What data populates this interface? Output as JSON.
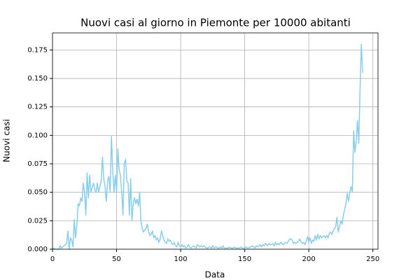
{
  "chart_data": {
    "type": "line",
    "title": "Nuovi casi al giorno in Piemonte per 10000 abitanti",
    "xlabel": "Data",
    "ylabel": "Nuovi casi",
    "color": "#87ceeb",
    "grid": true,
    "xlim": [
      0,
      254
    ],
    "ylim": [
      0,
      0.19
    ],
    "xticks": [
      0,
      50,
      100,
      150,
      200,
      250
    ],
    "yticks": [
      {
        "value": 0,
        "label": "0.000"
      },
      {
        "value": 0.025,
        "label": "0.025"
      },
      {
        "value": 0.05,
        "label": "0.050"
      },
      {
        "value": 0.075,
        "label": "0.075"
      },
      {
        "value": 0.1,
        "label": "0.100"
      },
      {
        "value": 0.125,
        "label": "0.125"
      },
      {
        "value": 0.15,
        "label": "0.150"
      },
      {
        "value": 0.175,
        "label": "0.175"
      }
    ],
    "x": [
      0,
      1,
      2,
      3,
      4,
      5,
      6,
      7,
      8,
      9,
      10,
      11,
      12,
      13,
      14,
      15,
      16,
      17,
      18,
      19,
      20,
      21,
      22,
      23,
      24,
      25,
      26,
      27,
      28,
      29,
      30,
      31,
      32,
      33,
      34,
      35,
      36,
      37,
      38,
      39,
      40,
      41,
      42,
      43,
      44,
      45,
      46,
      47,
      48,
      49,
      50,
      51,
      52,
      53,
      54,
      55,
      56,
      57,
      58,
      59,
      60,
      61,
      62,
      63,
      64,
      65,
      66,
      67,
      68,
      69,
      70,
      71,
      72,
      73,
      74,
      75,
      76,
      77,
      78,
      79,
      80,
      81,
      82,
      83,
      84,
      85,
      86,
      87,
      88,
      89,
      90,
      91,
      92,
      93,
      94,
      95,
      96,
      97,
      98,
      99,
      100,
      101,
      102,
      103,
      104,
      105,
      106,
      107,
      108,
      109,
      110,
      111,
      112,
      113,
      114,
      115,
      116,
      117,
      118,
      119,
      120,
      121,
      122,
      123,
      124,
      125,
      126,
      127,
      128,
      129,
      130,
      131,
      132,
      133,
      134,
      135,
      136,
      137,
      138,
      139,
      140,
      141,
      142,
      143,
      144,
      145,
      146,
      147,
      148,
      149,
      150,
      151,
      152,
      153,
      154,
      155,
      156,
      157,
      158,
      159,
      160,
      161,
      162,
      163,
      164,
      165,
      166,
      167,
      168,
      169,
      170,
      171,
      172,
      173,
      174,
      175,
      176,
      177,
      178,
      179,
      180,
      181,
      182,
      183,
      184,
      185,
      186,
      187,
      188,
      189,
      190,
      191,
      192,
      193,
      194,
      195,
      196,
      197,
      198,
      199,
      200,
      201,
      202,
      203,
      204,
      205,
      206,
      207,
      208,
      209,
      210,
      211,
      212,
      213,
      214,
      215,
      216,
      217,
      218,
      219,
      220,
      221,
      222,
      223,
      224,
      225,
      226,
      227,
      228,
      229,
      230,
      231,
      232,
      233,
      234,
      235,
      236,
      237,
      238,
      239,
      240,
      241,
      242
    ],
    "values": [
      0,
      0.001,
      0,
      0,
      0,
      0,
      0.003,
      0.001,
      0.002,
      0.003,
      0.004,
      0.005,
      0.016,
      0,
      0.01,
      0.008,
      0.002,
      0.026,
      0.01,
      0.02,
      0.04,
      0.038,
      0.045,
      0.042,
      0.058,
      0.05,
      0.03,
      0.067,
      0.045,
      0.065,
      0.05,
      0.055,
      0.058,
      0.052,
      0.05,
      0.058,
      0.05,
      0.055,
      0.06,
      0.081,
      0.062,
      0.055,
      0.042,
      0.06,
      0.064,
      0.05,
      0.099,
      0.068,
      0.05,
      0.065,
      0.05,
      0.088,
      0.07,
      0.065,
      0.05,
      0.03,
      0.075,
      0.079,
      0.06,
      0.058,
      0.03,
      0.062,
      0.025,
      0.04,
      0.045,
      0.04,
      0.044,
      0.038,
      0.05,
      0.025,
      0.018,
      0.015,
      0.017,
      0.018,
      0.022,
      0.015,
      0.012,
      0.013,
      0.016,
      0.01,
      0.012,
      0.008,
      0.01,
      0.006,
      0.009,
      0.016,
      0.012,
      0.008,
      0.006,
      0.005,
      0.009,
      0.007,
      0.008,
      0.005,
      0.004,
      0.006,
      0.003,
      0.002,
      0.006,
      0.003,
      0.002,
      0.004,
      0.002,
      0.003,
      0.001,
      0.002,
      0.004,
      0.002,
      0.001,
      0.002,
      0.003,
      0.002,
      0.001,
      0.004,
      0.003,
      0.002,
      0.003,
      0.002,
      0.003,
      0.002,
      0.001,
      0.001,
      0.002,
      0.002,
      0.001,
      0.003,
      0.001,
      0.002,
      0.002,
      0.001,
      0.001,
      0.002,
      0.001,
      0.003,
      0.001,
      0.001,
      0.001,
      0.001,
      0.002,
      0.001,
      0.001,
      0.001,
      0.002,
      0.001,
      0.001,
      0.001,
      0.001,
      0.002,
      0.001,
      0.001,
      0.001,
      0.002,
      0.001,
      0.001,
      0.002,
      0.002,
      0.003,
      0.002,
      0.001,
      0.003,
      0.002,
      0.003,
      0.004,
      0.002,
      0.004,
      0.003,
      0.005,
      0.004,
      0.003,
      0.005,
      0.004,
      0.004,
      0.005,
      0.003,
      0.006,
      0.004,
      0.005,
      0.004,
      0.006,
      0.005,
      0.004,
      0.005,
      0.006,
      0.005,
      0.007,
      0.009,
      0.009,
      0.008,
      0.005,
      0.006,
      0.005,
      0.006,
      0.007,
      0.009,
      0.006,
      0.005,
      0.006,
      0.004,
      0.007,
      0.011,
      0.006,
      0.01,
      0.005,
      0.008,
      0.007,
      0.012,
      0.008,
      0.013,
      0.009,
      0.012,
      0.01,
      0.011,
      0.012,
      0.01,
      0.012,
      0.01,
      0.014,
      0.015,
      0.013,
      0.016,
      0.018,
      0.02,
      0.028,
      0.015,
      0.02,
      0.025,
      0.022,
      0.03,
      0.035,
      0.04,
      0.049,
      0.042,
      0.05,
      0.055,
      0.05,
      0.104,
      0.085,
      0.095,
      0.113,
      0.093,
      0.14,
      0.18,
      0.155
    ]
  }
}
